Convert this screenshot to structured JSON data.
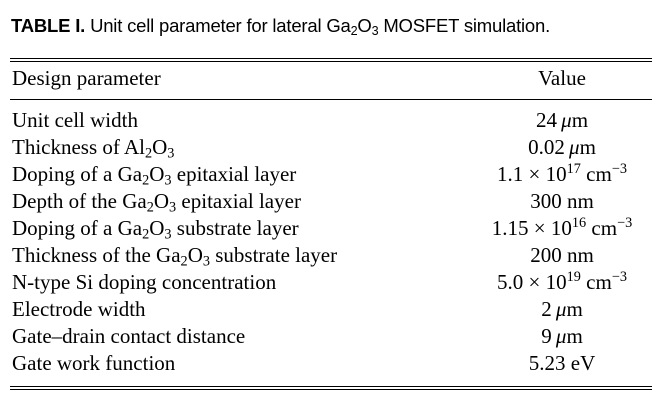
{
  "caption": {
    "label": "TABLE I.",
    "text_before": "Unit cell parameter for lateral Ga",
    "sub1": "2",
    "mid": "O",
    "sub2": "3",
    "text_after": " MOSFET simulation."
  },
  "header": {
    "param": "Design parameter",
    "value": "Value"
  },
  "rows": [
    {
      "p": [
        "Unit cell width"
      ],
      "v": [
        "24 ",
        "μ",
        "m"
      ]
    },
    {
      "p": [
        "Thickness of Al",
        "2",
        "O",
        "3"
      ],
      "v": [
        "0.02 ",
        "μ",
        "m"
      ]
    },
    {
      "p": [
        "Doping of a Ga",
        "2",
        "O",
        "3",
        " epitaxial layer"
      ],
      "v": [
        "1.1 × 10",
        "17",
        " cm",
        "−3"
      ]
    },
    {
      "p": [
        "Depth of the Ga",
        "2",
        "O",
        "3",
        " epitaxial layer"
      ],
      "v": [
        "300 nm"
      ]
    },
    {
      "p": [
        "Doping of a Ga",
        "2",
        "O",
        "3",
        " substrate layer"
      ],
      "v": [
        "1.15 × 10",
        "16",
        " cm",
        "−3"
      ]
    },
    {
      "p": [
        "Thickness of the Ga",
        "2",
        "O",
        "3",
        " substrate layer"
      ],
      "v": [
        "200 nm"
      ]
    },
    {
      "p": [
        "N-type Si doping concentration"
      ],
      "v": [
        "5.0 × 10",
        "19",
        " cm",
        "−3"
      ]
    },
    {
      "p": [
        "Electrode width"
      ],
      "v": [
        "2 ",
        "μ",
        "m"
      ]
    },
    {
      "p": [
        "Gate–drain contact distance"
      ],
      "v": [
        "9 ",
        "μ",
        "m"
      ]
    },
    {
      "p": [
        "Gate work function"
      ],
      "v": [
        "5.23 eV"
      ]
    }
  ]
}
